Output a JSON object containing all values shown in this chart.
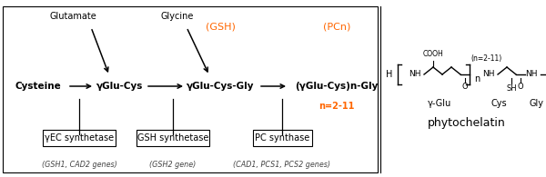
{
  "bg_color": "#ffffff",
  "glutamate_label": "Glutamate",
  "glycine_label": "Glycine",
  "gsh_label": "(GSH)",
  "pcn_label": "(PCn)",
  "cysteine_label": "Cysteine",
  "yglu_cys_label": "γGlu-Cys",
  "yglu_cys_gly_label": "γGlu-Cys-Gly",
  "yglu_cys_n_gly_label": "(γGlu-Cys)n-Gly",
  "n_label": "n=2-11",
  "enzyme1_label": "γEC synthetase",
  "enzyme2_label": "GSH synthetase",
  "enzyme3_label": "PC synthase",
  "gene1_label": "(GSH1, CAD2 genes)",
  "gene2_label": "(GSH2 gene)",
  "gene3_label": "(CAD1, PCS1, PCS2 genes)",
  "orange_color": "#FF6600",
  "black_color": "#000000",
  "gray_color": "#444444",
  "phytochelatin_label": "phytochelatin",
  "gamma_glu_label": "γ-Glu",
  "cys_label": "Cys",
  "gly_label": "Gly",
  "n_range_label": "(n=2-11)"
}
